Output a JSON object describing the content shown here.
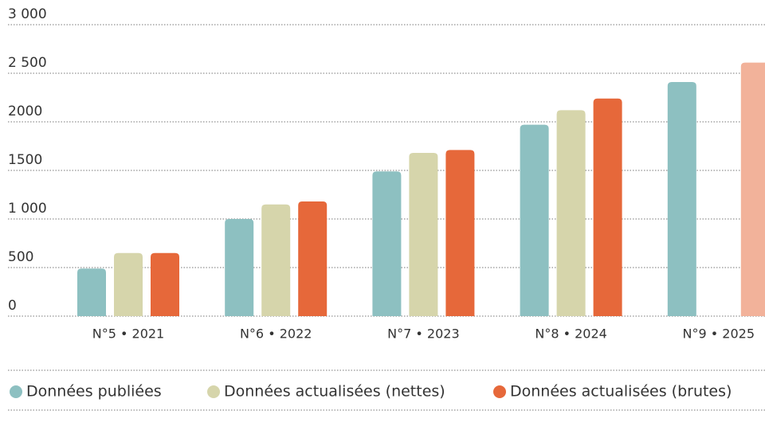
{
  "chart_data": {
    "type": "bar",
    "categories": [
      "N°5 • 2021",
      "N°6 • 2022",
      "N°7 • 2023",
      "N°8 • 2024",
      "N°9 • 2025"
    ],
    "series": [
      {
        "name": "Données publiées",
        "color": "#8dc0c1",
        "values": [
          490,
          1000,
          1490,
          1970,
          2410
        ]
      },
      {
        "name": "Données actualisées (nettes)",
        "color": "#d6d5ab",
        "values": [
          650,
          1150,
          1680,
          2120,
          null
        ]
      },
      {
        "name": "Données actualisées (brutes)",
        "color": "#e6683a",
        "values": [
          650,
          1180,
          1710,
          2240,
          2610
        ],
        "colors": [
          "#e6683a",
          "#e6683a",
          "#e6683a",
          "#e6683a",
          "#f2b29a"
        ]
      }
    ],
    "ylim": [
      0,
      3000
    ],
    "yticks": [
      0,
      500,
      {
        "value": 1000,
        "label": "1 000"
      },
      1500,
      2000,
      {
        "value": 2500,
        "label": "2 500"
      },
      {
        "value": 3000,
        "label": "3 000"
      }
    ],
    "grid": true
  }
}
